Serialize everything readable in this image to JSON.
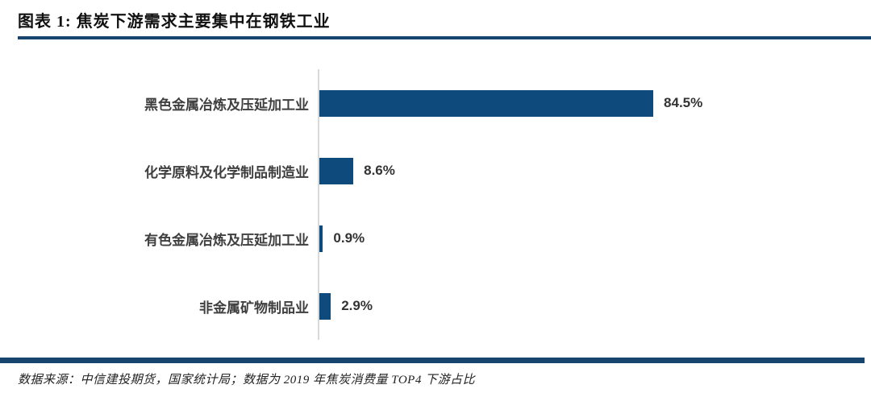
{
  "page": {
    "title": "图表 1: 焦炭下游需求主要集中在钢铁工业"
  },
  "footer": {
    "source_note": "数据来源：中信建投期货，国家统计局；数据为 2019 年焦炭消费量 TOP4 下游占比"
  },
  "colors": {
    "bar": "#0E4B7C",
    "rule": "#17456E",
    "axis": "#D9D9D9",
    "category_label": "#3F3F3F"
  },
  "chart_data": {
    "type": "bar",
    "orientation": "horizontal",
    "title": "图表 1: 焦炭下游需求主要集中在钢铁工业",
    "categories": [
      "黑色金属冶炼及压延加工业",
      "化学原料及化学制品制造业",
      "有色金属冶炼及压延加工业",
      "非金属矿物制品业"
    ],
    "values": [
      84.5,
      8.6,
      0.9,
      2.9
    ],
    "value_labels": [
      "84.5%",
      "8.6%",
      "0.9%",
      "2.9%"
    ],
    "xlabel": "",
    "ylabel": "",
    "xlim": [
      0,
      100
    ],
    "grid": false,
    "legend": "none",
    "source": "数据来源：中信建投期货，国家统计局；数据为 2019 年焦炭消费量 TOP4 下游占比"
  }
}
